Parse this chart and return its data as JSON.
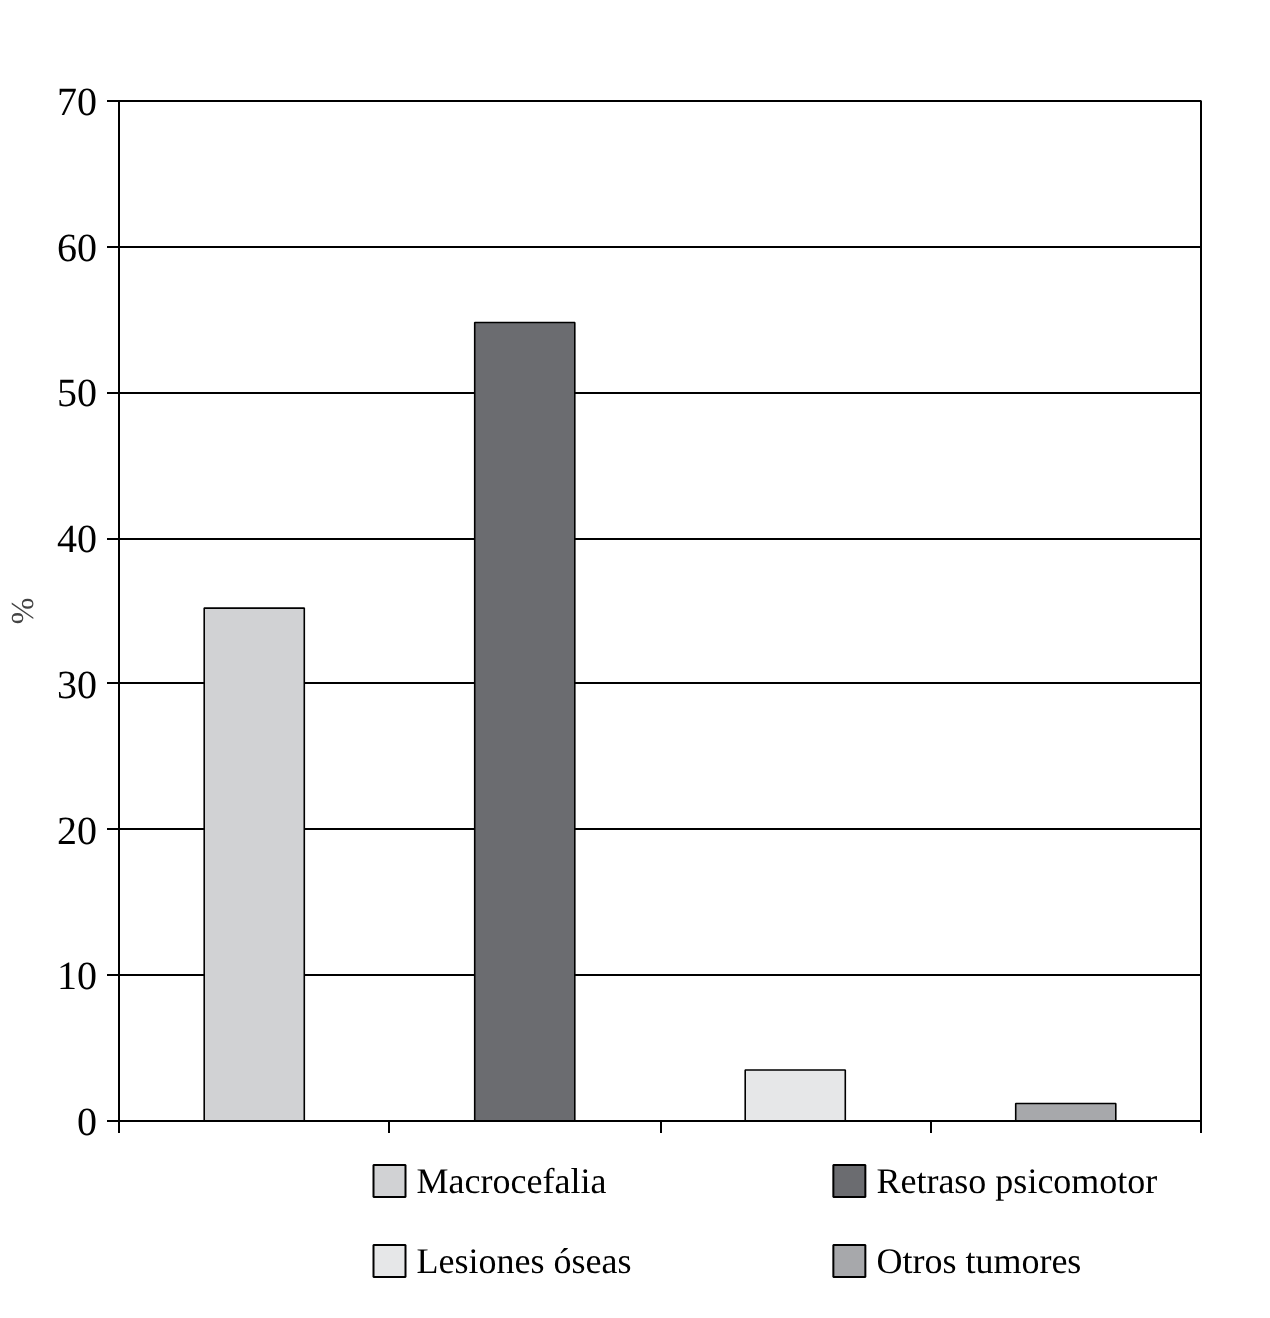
{
  "chart_data": {
    "type": "bar",
    "ylabel": "%",
    "categories": [
      null,
      null,
      null,
      null
    ],
    "series": [
      {
        "name": "Macrocefalia",
        "color": "#d1d2d4",
        "values": [
          35.2,
          null,
          null,
          null
        ]
      },
      {
        "name": "Retraso psicomotor",
        "color": "#6b6c70",
        "values": [
          null,
          54.8,
          null,
          null
        ]
      },
      {
        "name": "Lesiones óseas",
        "color": "#e6e7e8",
        "values": [
          null,
          null,
          3.5,
          null
        ]
      },
      {
        "name": "Otros tumores",
        "color": "#a7a8ab",
        "values": [
          null,
          null,
          null,
          1.2
        ]
      }
    ],
    "ylim": [
      0,
      70
    ],
    "yticks": [
      0,
      10,
      20,
      30,
      40,
      50,
      60,
      70
    ],
    "grid": "y",
    "legend": "bottom"
  }
}
